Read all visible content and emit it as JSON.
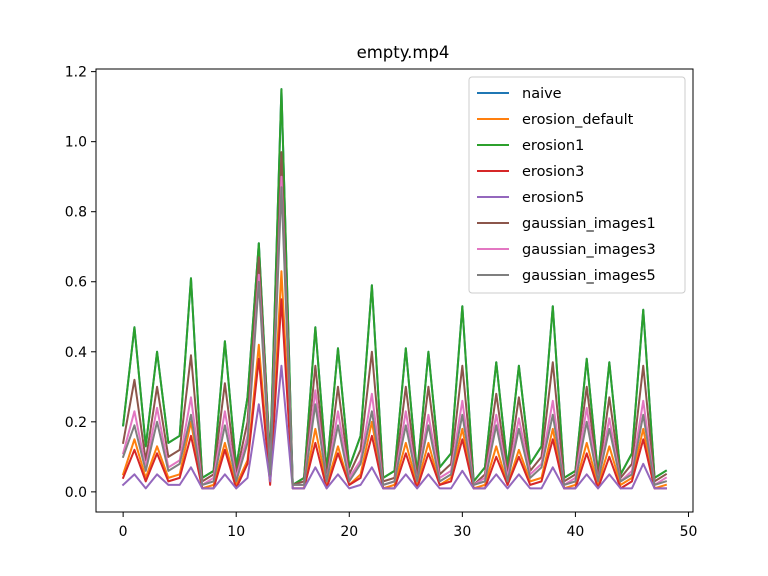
{
  "chart_data": {
    "type": "line",
    "title": "empty.mp4",
    "xlabel": "",
    "ylabel": "",
    "xlim": [
      -2.4,
      50.4
    ],
    "ylim": [
      -0.0575,
      1.2075
    ],
    "xticks": [
      0,
      10,
      20,
      30,
      40,
      50
    ],
    "yticks": [
      0.0,
      0.2,
      0.4,
      0.6,
      0.8,
      1.0,
      1.2
    ],
    "xtick_labels": [
      "0",
      "10",
      "20",
      "30",
      "40",
      "50"
    ],
    "ytick_labels": [
      "0.0",
      "0.2",
      "0.4",
      "0.6",
      "0.8",
      "1.0",
      "1.2"
    ],
    "grid": false,
    "legend_position": "upper-right",
    "x": [
      0,
      1,
      2,
      3,
      4,
      5,
      6,
      7,
      8,
      9,
      10,
      11,
      12,
      13,
      14,
      15,
      16,
      17,
      18,
      19,
      20,
      21,
      22,
      23,
      24,
      25,
      26,
      27,
      28,
      29,
      30,
      31,
      32,
      33,
      34,
      35,
      36,
      37,
      38,
      39,
      40,
      41,
      42,
      43,
      44,
      45,
      46,
      47,
      48
    ],
    "series": [
      {
        "name": "naive",
        "color": "#1f77b4",
        "values": [
          0.19,
          0.47,
          0.13,
          0.4,
          0.14,
          0.16,
          0.61,
          0.04,
          0.06,
          0.43,
          0.07,
          0.27,
          0.71,
          0.09,
          1.15,
          0.02,
          0.04,
          0.47,
          0.06,
          0.41,
          0.07,
          0.16,
          0.59,
          0.04,
          0.06,
          0.41,
          0.05,
          0.4,
          0.07,
          0.11,
          0.53,
          0.03,
          0.07,
          0.37,
          0.07,
          0.36,
          0.08,
          0.13,
          0.53,
          0.04,
          0.06,
          0.38,
          0.05,
          0.37,
          0.05,
          0.11,
          0.52,
          0.04,
          0.06
        ]
      },
      {
        "name": "erosion_default",
        "color": "#ff7f0e",
        "values": [
          0.05,
          0.15,
          0.04,
          0.13,
          0.04,
          0.05,
          0.2,
          0.01,
          0.02,
          0.14,
          0.02,
          0.09,
          0.42,
          0.03,
          0.63,
          0.01,
          0.01,
          0.18,
          0.02,
          0.13,
          0.02,
          0.05,
          0.2,
          0.01,
          0.02,
          0.14,
          0.02,
          0.14,
          0.02,
          0.04,
          0.18,
          0.01,
          0.02,
          0.13,
          0.02,
          0.12,
          0.03,
          0.04,
          0.18,
          0.01,
          0.02,
          0.14,
          0.02,
          0.13,
          0.02,
          0.04,
          0.18,
          0.01,
          0.02
        ]
      },
      {
        "name": "erosion1",
        "color": "#2ca02c",
        "values": [
          0.19,
          0.47,
          0.13,
          0.4,
          0.14,
          0.16,
          0.61,
          0.04,
          0.06,
          0.43,
          0.07,
          0.27,
          0.71,
          0.09,
          1.15,
          0.02,
          0.04,
          0.47,
          0.06,
          0.41,
          0.07,
          0.16,
          0.59,
          0.04,
          0.06,
          0.41,
          0.05,
          0.4,
          0.07,
          0.11,
          0.53,
          0.03,
          0.07,
          0.37,
          0.07,
          0.36,
          0.08,
          0.13,
          0.53,
          0.04,
          0.06,
          0.38,
          0.05,
          0.37,
          0.05,
          0.11,
          0.52,
          0.04,
          0.06
        ]
      },
      {
        "name": "erosion3",
        "color": "#d62728",
        "values": [
          0.04,
          0.12,
          0.03,
          0.11,
          0.03,
          0.04,
          0.16,
          0.01,
          0.01,
          0.12,
          0.01,
          0.08,
          0.38,
          0.02,
          0.55,
          0.01,
          0.01,
          0.14,
          0.01,
          0.11,
          0.02,
          0.04,
          0.16,
          0.01,
          0.01,
          0.11,
          0.01,
          0.11,
          0.02,
          0.03,
          0.15,
          0.01,
          0.01,
          0.1,
          0.02,
          0.1,
          0.02,
          0.03,
          0.15,
          0.01,
          0.01,
          0.11,
          0.01,
          0.1,
          0.01,
          0.03,
          0.15,
          0.01,
          0.01
        ]
      },
      {
        "name": "erosion5",
        "color": "#9467bd",
        "values": [
          0.02,
          0.05,
          0.01,
          0.05,
          0.02,
          0.02,
          0.07,
          0.01,
          0.01,
          0.05,
          0.01,
          0.04,
          0.25,
          0.03,
          0.36,
          0.01,
          0.01,
          0.07,
          0.01,
          0.05,
          0.01,
          0.02,
          0.07,
          0.01,
          0.01,
          0.05,
          0.01,
          0.05,
          0.01,
          0.01,
          0.06,
          0.01,
          0.01,
          0.05,
          0.01,
          0.05,
          0.01,
          0.01,
          0.07,
          0.01,
          0.01,
          0.05,
          0.01,
          0.05,
          0.01,
          0.01,
          0.08,
          0.01,
          0.01
        ]
      },
      {
        "name": "gaussian_images1",
        "color": "#8c564b",
        "values": [
          0.14,
          0.32,
          0.09,
          0.3,
          0.1,
          0.12,
          0.39,
          0.03,
          0.05,
          0.31,
          0.05,
          0.2,
          0.67,
          0.07,
          0.97,
          0.02,
          0.03,
          0.36,
          0.04,
          0.3,
          0.05,
          0.12,
          0.4,
          0.03,
          0.04,
          0.3,
          0.04,
          0.3,
          0.05,
          0.08,
          0.36,
          0.02,
          0.05,
          0.28,
          0.05,
          0.27,
          0.06,
          0.1,
          0.37,
          0.03,
          0.05,
          0.3,
          0.04,
          0.27,
          0.04,
          0.08,
          0.36,
          0.03,
          0.05
        ]
      },
      {
        "name": "gaussian_images3",
        "color": "#e377c2",
        "values": [
          0.11,
          0.23,
          0.07,
          0.24,
          0.07,
          0.09,
          0.27,
          0.02,
          0.04,
          0.23,
          0.04,
          0.16,
          0.62,
          0.06,
          0.9,
          0.02,
          0.02,
          0.29,
          0.03,
          0.23,
          0.04,
          0.09,
          0.28,
          0.02,
          0.03,
          0.23,
          0.03,
          0.22,
          0.04,
          0.06,
          0.26,
          0.02,
          0.04,
          0.22,
          0.04,
          0.21,
          0.05,
          0.08,
          0.26,
          0.02,
          0.04,
          0.24,
          0.03,
          0.21,
          0.03,
          0.06,
          0.26,
          0.02,
          0.04
        ]
      },
      {
        "name": "gaussian_images5",
        "color": "#7f7f7f",
        "values": [
          0.1,
          0.19,
          0.06,
          0.2,
          0.06,
          0.08,
          0.22,
          0.02,
          0.03,
          0.19,
          0.03,
          0.14,
          0.6,
          0.05,
          0.87,
          0.02,
          0.02,
          0.25,
          0.03,
          0.19,
          0.03,
          0.08,
          0.23,
          0.02,
          0.03,
          0.19,
          0.03,
          0.19,
          0.03,
          0.05,
          0.22,
          0.02,
          0.03,
          0.19,
          0.03,
          0.18,
          0.04,
          0.07,
          0.22,
          0.02,
          0.03,
          0.2,
          0.03,
          0.18,
          0.03,
          0.05,
          0.22,
          0.02,
          0.03
        ]
      }
    ]
  }
}
